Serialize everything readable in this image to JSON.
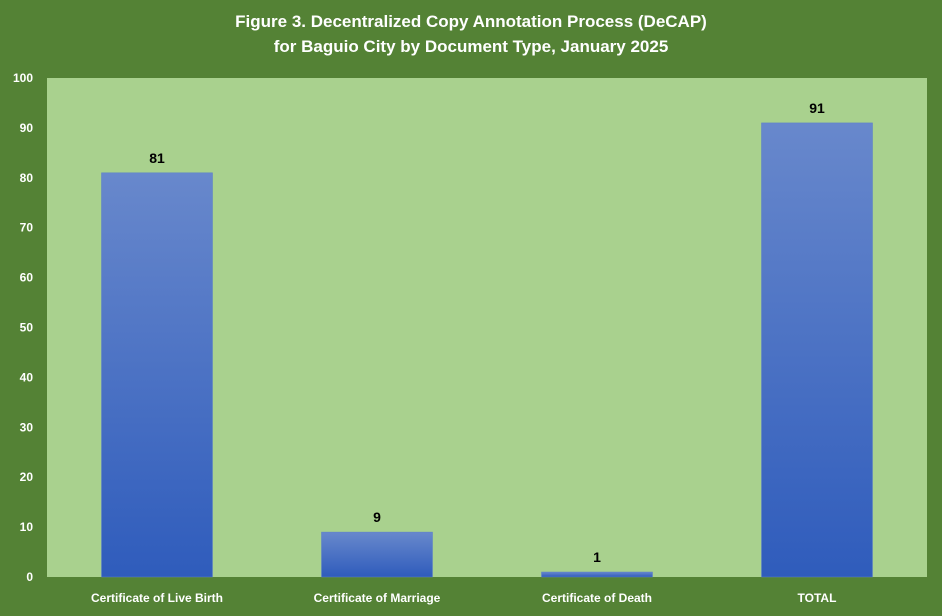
{
  "colors": {
    "background": "#548235",
    "plot_area": "#A9D18E",
    "bar_top": "#6888CC",
    "bar_bottom": "#2F5CBC",
    "text_light": "#FFFFFF",
    "text_dark": "#000000"
  },
  "chart_data": {
    "type": "bar",
    "title": "Figure 3. Decentralized Copy Annotation Process (DeCAP)",
    "subtitle": "for Baguio City by Document Type, January 2025",
    "categories": [
      "Certificate of Live Birth",
      "Certificate of Marriage",
      "Certificate of Death",
      "TOTAL"
    ],
    "values": [
      81,
      9,
      1,
      91
    ],
    "data_labels": [
      "81",
      "9",
      "1",
      "91"
    ],
    "ylim": [
      0,
      100
    ],
    "yticks": [
      0,
      10,
      20,
      30,
      40,
      50,
      60,
      70,
      80,
      90,
      100
    ],
    "xlabel": "",
    "ylabel": "",
    "grid": false,
    "legend": "none"
  }
}
